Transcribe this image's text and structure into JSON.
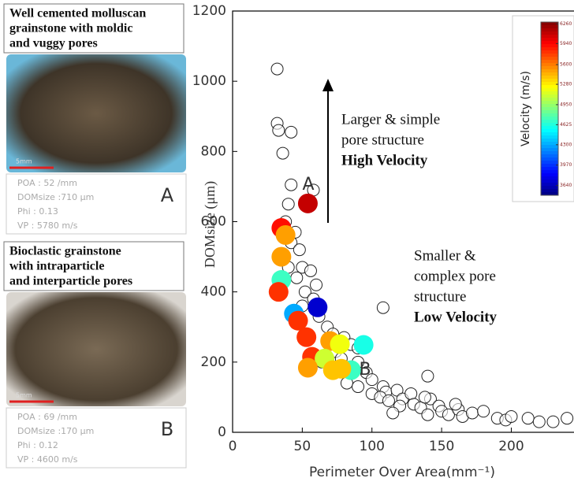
{
  "chart_data": {
    "type": "scatter",
    "xlabel": "Perimeter Over Area(mm⁻¹)",
    "ylabel": "DOMsize (μm)",
    "xlim": [
      0,
      245
    ],
    "ylim": [
      0,
      1200
    ],
    "xticks": [
      0,
      50,
      100,
      150,
      200
    ],
    "yticks": [
      0,
      200,
      400,
      600,
      800,
      1000,
      1200
    ],
    "series": [
      {
        "x": [
          32,
          32,
          33,
          42,
          36,
          42,
          58,
          40,
          38,
          45,
          42,
          48,
          40,
          50,
          56,
          60,
          46,
          52,
          58,
          50,
          108,
          62,
          68,
          72,
          80,
          85,
          90,
          74,
          78,
          64,
          70,
          90,
          96,
          100,
          82,
          90,
          108,
          110,
          118,
          100,
          106,
          112,
          122,
          128,
          130,
          135,
          140,
          142,
          148,
          150,
          155,
          140,
          162,
          165,
          172,
          180,
          190,
          196,
          200,
          212,
          220,
          230,
          240,
          138,
          120,
          115,
          160
        ],
        "values": [
          1035,
          880,
          860,
          855,
          795,
          705,
          690,
          650,
          600,
          570,
          540,
          520,
          470,
          470,
          460,
          420,
          440,
          400,
          380,
          360,
          355,
          330,
          300,
          280,
          270,
          250,
          240,
          230,
          210,
          200,
          190,
          200,
          170,
          150,
          140,
          130,
          130,
          115,
          120,
          110,
          100,
          90,
          95,
          110,
          80,
          70,
          160,
          95,
          75,
          60,
          50,
          50,
          65,
          45,
          55,
          60,
          40,
          35,
          45,
          40,
          30,
          30,
          40,
          100,
          75,
          55,
          80
        ]
      },
      {
        "x": [
          54,
          35,
          38,
          35,
          35,
          33,
          61,
          44,
          47,
          53,
          57,
          70,
          77,
          94,
          85,
          78,
          66,
          54,
          72
        ],
        "values": [
          652,
          582,
          562,
          500,
          434,
          400,
          356,
          338,
          318,
          271,
          215,
          260,
          251,
          249,
          177,
          181,
          210,
          184,
          177
        ],
        "velocity": [
          6100,
          5900,
          5500,
          5500,
          4700,
          5800,
          3700,
          4300,
          5800,
          5800,
          5800,
          5500,
          5200,
          4600,
          4700,
          5400,
          5100,
          5500,
          5400
        ]
      }
    ],
    "colorbar": {
      "label": "Velocity (m/s)",
      "clim": [
        3480,
        6290
      ],
      "ticks": [
        6260,
        5940,
        5600,
        5280,
        4950,
        4625,
        4300,
        3970,
        3640
      ]
    },
    "annotations": [
      "A",
      "B"
    ],
    "text_high": [
      "Larger & simple",
      "pore structure",
      "High Velocity"
    ],
    "text_low": [
      "Smaller &",
      "complex pore",
      "structure",
      "Low Velocity"
    ]
  },
  "panels": [
    {
      "title": [
        "Well cemented molluscan",
        "grainstone with moldic",
        "and vuggy pores"
      ],
      "scale": "5mm",
      "letter": "A",
      "lines": [
        "POA : 52 /mm",
        "DOMsize :710 μm",
        "Phi : 0.13",
        "VP : 5780 m/s"
      ]
    },
    {
      "title": [
        "Bioclastic grainstone",
        "with intraparticle",
        "and interparticle pores"
      ],
      "scale": "5mm",
      "letter": "B",
      "lines": [
        "POA : 69 /mm",
        "DOMsize :170 μm",
        "Phi : 0.12",
        "VP : 4600 m/s"
      ]
    }
  ]
}
